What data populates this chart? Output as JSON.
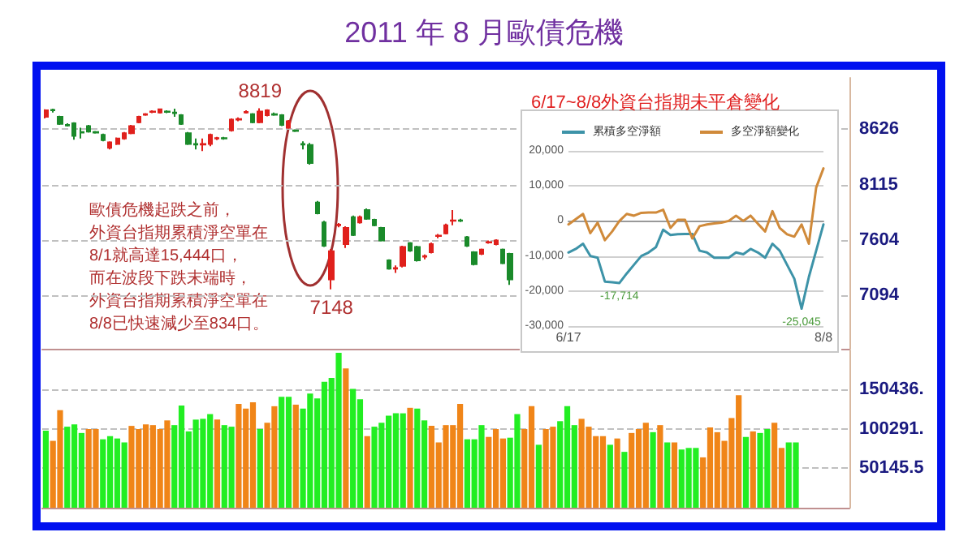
{
  "chart_data": [
    {
      "type": "candlestick",
      "title": "2011 年 8 月歐債危機",
      "categories": [
        null,
        null,
        null,
        null,
        null,
        null,
        null,
        null,
        null,
        null,
        null,
        null,
        null,
        null,
        null,
        null,
        null,
        null,
        null,
        null,
        null,
        null,
        null,
        null,
        null,
        null,
        null,
        null,
        null,
        null,
        null,
        null,
        null,
        null,
        null,
        null,
        null,
        null,
        null,
        null,
        null,
        null,
        null,
        null,
        null,
        null,
        null,
        null,
        null,
        null,
        null,
        null,
        null,
        null,
        null,
        null,
        null,
        null,
        null,
        null,
        null,
        null,
        null,
        null,
        null,
        null,
        null,
        null,
        null,
        null,
        null,
        null,
        null,
        null,
        null,
        null,
        null,
        null,
        null,
        null,
        null,
        null,
        null,
        null,
        null,
        null,
        null,
        null,
        null,
        null,
        null,
        null,
        null,
        null,
        null,
        null,
        null,
        null,
        null,
        null,
        null,
        null,
        null,
        null,
        null,
        null,
        null,
        null,
        null,
        null,
        null,
        null,
        null
      ],
      "ohlc": [
        [
          8740,
          8810,
          8725,
          8800
        ],
        [
          8805,
          8815,
          8780,
          8800
        ],
        [
          8740,
          8750,
          8665,
          8675
        ],
        [
          8665,
          8680,
          8650,
          8660
        ],
        [
          8680,
          8690,
          8530,
          8565
        ],
        [
          8600,
          8640,
          8540,
          8595
        ],
        [
          8655,
          8665,
          8595,
          8605
        ],
        [
          8600,
          8610,
          8585,
          8595
        ],
        [
          8575,
          8585,
          8515,
          8525
        ],
        [
          8455,
          8515,
          8440,
          8505
        ],
        [
          8490,
          8550,
          8480,
          8540
        ],
        [
          8540,
          8600,
          8530,
          8590
        ],
        [
          8590,
          8665,
          8580,
          8655
        ],
        [
          8690,
          8750,
          8680,
          8740
        ],
        [
          8760,
          8775,
          8750,
          8765
        ],
        [
          8785,
          8800,
          8775,
          8790
        ],
        [
          8780,
          8815,
          8770,
          8810
        ],
        [
          8790,
          8800,
          8775,
          8785
        ],
        [
          8780,
          8815,
          8740,
          8775
        ],
        [
          8755,
          8765,
          8665,
          8675
        ],
        [
          8590,
          8600,
          8480,
          8490
        ],
        [
          8490,
          8540,
          8440,
          8485
        ],
        [
          8485,
          8540,
          8425,
          8490
        ],
        [
          8490,
          8585,
          8470,
          8575
        ],
        [
          8540,
          8555,
          8525,
          8545
        ],
        [
          8545,
          8555,
          8530,
          8540
        ],
        [
          8615,
          8725,
          8605,
          8715
        ],
        [
          8715,
          8735,
          8700,
          8720
        ],
        [
          8780,
          8800,
          8770,
          8785
        ],
        [
          8765,
          8775,
          8680,
          8690
        ],
        [
          8690,
          8819,
          8680,
          8790
        ],
        [
          8755,
          8810,
          8745,
          8800
        ],
        [
          8765,
          8780,
          8750,
          8760
        ],
        [
          8755,
          8765,
          8655,
          8665
        ],
        [
          8640,
          8710,
          8630,
          8700
        ],
        [
          8615,
          8625,
          8600,
          8610
        ],
        [
          8490,
          8515,
          8440,
          8485
        ],
        [
          8480,
          8500,
          8300,
          8315
        ],
        [
          7950,
          7965,
          7840,
          7850
        ],
        [
          7765,
          7780,
          7540,
          7550
        ],
        [
          7240,
          7520,
          7148,
          7500
        ],
        [
          7740,
          7760,
          7720,
          7745
        ],
        [
          7565,
          7730,
          7530,
          7715
        ],
        [
          7815,
          7830,
          7640,
          7650
        ],
        [
          7765,
          7830,
          7755,
          7815
        ],
        [
          7880,
          7895,
          7790,
          7800
        ],
        [
          7790,
          7800,
          7730,
          7740
        ],
        [
          7715,
          7725,
          7590,
          7600
        ],
        [
          7415,
          7425,
          7330,
          7340
        ],
        [
          7340,
          7370,
          7300,
          7345
        ],
        [
          7365,
          7550,
          7350,
          7540
        ],
        [
          7575,
          7585,
          7495,
          7505
        ],
        [
          7540,
          7550,
          7405,
          7415
        ],
        [
          7450,
          7470,
          7425,
          7455
        ],
        [
          7490,
          7580,
          7480,
          7565
        ],
        [
          7640,
          7660,
          7620,
          7645
        ],
        [
          7665,
          7755,
          7655,
          7740
        ],
        [
          7780,
          7880,
          7740,
          7785
        ],
        [
          7785,
          7800,
          7770,
          7780
        ],
        [
          7630,
          7640,
          7540,
          7550
        ],
        [
          7490,
          7500,
          7370,
          7380
        ],
        [
          7475,
          7525,
          7465,
          7515
        ],
        [
          7580,
          7600,
          7570,
          7585
        ],
        [
          7565,
          7610,
          7555,
          7600
        ],
        [
          7515,
          7525,
          7380,
          7390
        ],
        [
          7475,
          7485,
          7190,
          7240
        ],
        null,
        null,
        null,
        null,
        null,
        null,
        null,
        null,
        null,
        null,
        null,
        null,
        null,
        null,
        null,
        null,
        null,
        null,
        null,
        null,
        null,
        null,
        null,
        null,
        null,
        null,
        null,
        null,
        null,
        null,
        null,
        null,
        null,
        null,
        null,
        null,
        null,
        null,
        null,
        null,
        null,
        null,
        null,
        null,
        null,
        null,
        null
      ],
      "colors": [
        "#e0201c",
        "#1a8a2a",
        "#1a8a2a",
        "#1a8a2a",
        "#1a8a2a",
        "#1a8a2a",
        "#1a8a2a",
        "#1a8a2a",
        "#1a8a2a",
        "#e0201c",
        "#e0201c",
        "#e0201c",
        "#e0201c",
        "#e0201c",
        "#e0201c",
        "#e0201c",
        "#e0201c",
        "#1a8a2a",
        "#1a8a2a",
        "#1a8a2a",
        "#1a8a2a",
        "#1a8a2a",
        "#e0201c",
        "#e0201c",
        "#e0201c",
        "#1a8a2a",
        "#e0201c",
        "#e0201c",
        "#e0201c",
        "#1a8a2a",
        "#e0201c",
        "#e0201c",
        "#1a8a2a",
        "#1a8a2a",
        "#e0201c",
        "#1a8a2a",
        "#1a8a2a",
        "#1a8a2a",
        "#1a8a2a",
        "#1a8a2a",
        "#e0201c",
        "#e0201c",
        "#e0201c",
        "#1a8a2a",
        "#e0201c",
        "#1a8a2a",
        "#1a8a2a",
        "#1a8a2a",
        "#1a8a2a",
        "#e0201c",
        "#e0201c",
        "#1a8a2a",
        "#1a8a2a",
        "#e0201c",
        "#e0201c",
        "#e0201c",
        "#e0201c",
        "#e0201c",
        "#1a8a2a",
        "#1a8a2a",
        "#1a8a2a",
        "#e0201c",
        "#e0201c",
        "#e0201c",
        "#1a8a2a",
        "#1a8a2a",
        null,
        null,
        null,
        null,
        null,
        null,
        null,
        null,
        null,
        null,
        null,
        null,
        null,
        null,
        null,
        null,
        null,
        null,
        null,
        null,
        null,
        null,
        null,
        null,
        null,
        null,
        null,
        null,
        null,
        null,
        null,
        null,
        null,
        null,
        null,
        null,
        null,
        null,
        null,
        null,
        null,
        null,
        null,
        null,
        null,
        null,
        null
      ],
      "ylim": [
        6600,
        9100
      ],
      "yticks": [
        7094,
        7604,
        8115,
        8626
      ],
      "grid": "y",
      "tick_labels": "y",
      "annotations": [
        {
          "text": "8819",
          "y": 8819
        },
        {
          "text": "7148",
          "y": 7148
        },
        "歐債危機起跌之前，",
        "外資台指期累積淨空單在",
        "8/1就高達15,444口，",
        "而在波段下跌末端時，",
        "外資台指期累積淨空單在",
        "8/8已快速減少至834口。"
      ]
    },
    {
      "type": "bar",
      "categories": [
        null,
        null,
        null,
        null,
        null,
        null,
        null,
        null,
        null,
        null,
        null,
        null,
        null,
        null,
        null,
        null,
        null,
        null,
        null,
        null,
        null,
        null,
        null,
        null,
        null,
        null,
        null,
        null,
        null,
        null,
        null,
        null,
        null,
        null,
        null,
        null,
        null,
        null,
        null,
        null,
        null,
        null,
        null,
        null,
        null,
        null,
        null,
        null,
        null,
        null,
        null,
        null,
        null,
        null,
        null,
        null,
        null,
        null,
        null,
        null,
        null,
        null,
        null,
        null,
        null,
        null,
        null,
        null,
        null,
        null,
        null,
        null,
        null,
        null,
        null,
        null,
        null,
        null,
        null,
        null,
        null,
        null,
        null,
        null,
        null,
        null,
        null,
        null,
        null,
        null,
        null,
        null,
        null,
        null,
        null,
        null,
        null,
        null,
        null,
        null,
        null,
        null,
        null,
        null,
        null,
        null,
        null,
        null,
        null,
        null,
        null,
        null,
        null
      ],
      "values": [
        98000,
        85000,
        124000,
        103000,
        106000,
        95000,
        100000,
        100000,
        87000,
        91000,
        88000,
        83000,
        104000,
        100000,
        106000,
        105000,
        100000,
        111000,
        105000,
        130000,
        97000,
        112000,
        113000,
        119000,
        112000,
        105000,
        103000,
        132000,
        126000,
        134000,
        100000,
        108000,
        129000,
        141000,
        141000,
        131000,
        126000,
        145000,
        139000,
        160000,
        165000,
        197000,
        177000,
        151000,
        138000,
        91000,
        103000,
        108000,
        117000,
        120000,
        120000,
        127000,
        126000,
        111000,
        104000,
        83000,
        105000,
        105000,
        132000,
        87000,
        87000,
        105000,
        90000,
        100000,
        88000,
        89000,
        119000,
        100000,
        129000,
        80000,
        100000,
        103000,
        110000,
        129000,
        105000,
        113000,
        103000,
        91000,
        91000,
        80000,
        88000,
        71000,
        95000,
        100000,
        108000,
        96000,
        105000,
        83000,
        83000,
        74000,
        76000,
        76000,
        64000,
        102000,
        96000,
        85000,
        114000,
        143000,
        90000,
        97000,
        95000,
        100000,
        108000,
        76000,
        83000,
        83000,
        null,
        null,
        null,
        null,
        null,
        null,
        null
      ],
      "colors": [
        "#22ee22",
        "#f08518",
        "#f08518",
        "#22ee22",
        "#22ee22",
        "#22ee22",
        "#f08518",
        "#f08518",
        "#22ee22",
        "#22ee22",
        "#22ee22",
        "#22ee22",
        "#f08518",
        "#f08518",
        "#f08518",
        "#f08518",
        "#f08518",
        "#f08518",
        "#22ee22",
        "#22ee22",
        "#22ee22",
        "#22ee22",
        "#22ee22",
        "#22ee22",
        "#f08518",
        "#22ee22",
        "#22ee22",
        "#f08518",
        "#f08518",
        "#f08518",
        "#22ee22",
        "#f08518",
        "#f08518",
        "#22ee22",
        "#22ee22",
        "#f08518",
        "#22ee22",
        "#22ee22",
        "#22ee22",
        "#22ee22",
        "#22ee22",
        "#22ee22",
        "#f08518",
        "#22ee22",
        "#22ee22",
        "#f08518",
        "#22ee22",
        "#22ee22",
        "#22ee22",
        "#22ee22",
        "#22ee22",
        "#f08518",
        "#22ee22",
        "#22ee22",
        "#f08518",
        "#f08518",
        "#f08518",
        "#f08518",
        "#f08518",
        "#22ee22",
        "#22ee22",
        "#22ee22",
        "#f08518",
        "#f08518",
        "#f08518",
        "#22ee22",
        "#22ee22",
        "#f08518",
        "#f08518",
        "#22ee22",
        "#f08518",
        "#f08518",
        "#22ee22",
        "#22ee22",
        "#22ee22",
        "#f08518",
        "#f08518",
        "#f08518",
        "#f08518",
        "#22ee22",
        "#f08518",
        "#22ee22",
        "#f08518",
        "#f08518",
        "#f08518",
        "#22ee22",
        "#f08518",
        "#22ee22",
        "#f08518",
        "#22ee22",
        "#22ee22",
        "#22ee22",
        "#f08518",
        "#f08518",
        "#f08518",
        "#f08518",
        "#f08518",
        "#f08518",
        "#22ee22",
        "#f08518",
        "#22ee22",
        "#22ee22",
        "#f08518",
        "#f08518",
        "#22ee22",
        "#22ee22",
        null,
        null,
        null,
        null,
        null,
        null,
        null
      ],
      "ylim": [
        0,
        200000
      ],
      "yticks": [
        50145.5,
        {
          "value": 100291,
          "label": "100291."
        },
        {
          "value": 150436.5,
          "label": "150436."
        }
      ],
      "grid": "y",
      "tick_labels": "y"
    },
    {
      "type": "line",
      "title": "6/17~8/8外資台指期未平倉變化",
      "categories": [
        "6/17",
        null,
        null,
        null,
        null,
        null,
        null,
        null,
        null,
        null,
        null,
        null,
        null,
        null,
        null,
        null,
        null,
        null,
        null,
        null,
        null,
        null,
        null,
        null,
        null,
        null,
        null,
        null,
        null,
        null,
        null,
        null,
        null,
        null,
        null,
        "8/8"
      ],
      "series": [
        {
          "name": "累積多空淨額",
          "color": "#3d93a8",
          "values": [
            -9000,
            -8000,
            -6500,
            -10000,
            -10500,
            -17300,
            -17500,
            -17714,
            -15000,
            -12500,
            -10000,
            -9000,
            -7500,
            -2500,
            -4000,
            -3800,
            -3700,
            -3700,
            -8500,
            -9000,
            -10500,
            -10500,
            -10500,
            -9000,
            -9500,
            -8000,
            -9000,
            -10500,
            -6500,
            -8500,
            -12500,
            -16500,
            -25045,
            -16000,
            -8500,
            -1000
          ]
        },
        {
          "name": "多空淨額變化",
          "color": "#d08a3a",
          "values": [
            -1000,
            500,
            2000,
            -3500,
            -500,
            -5500,
            -3000,
            0,
            2000,
            1500,
            2300,
            2400,
            2400,
            3200,
            -2000,
            300,
            300,
            -5000,
            -1500,
            -1000,
            -700,
            -500,
            0,
            1500,
            0,
            1500,
            -800,
            -3000,
            2800,
            -2000,
            -3800,
            -4500,
            -1000,
            -6500,
            9500,
            15000
          ]
        }
      ],
      "ylim": [
        -30000,
        20000
      ],
      "yticks": [
        {
          "value": -30000,
          "label": "-30,000"
        },
        {
          "value": -20000,
          "label": "-20,000"
        },
        {
          "value": -10000,
          "label": "-10,000"
        },
        0,
        {
          "value": 10000,
          "label": "10,000"
        },
        {
          "value": 20000,
          "label": "20,000"
        }
      ],
      "grid": "y",
      "legend": "top",
      "marker": "none",
      "annotations": [
        {
          "text": "-17,714",
          "y": -17714
        },
        {
          "text": "-25,045",
          "y": -25045
        }
      ]
    }
  ]
}
